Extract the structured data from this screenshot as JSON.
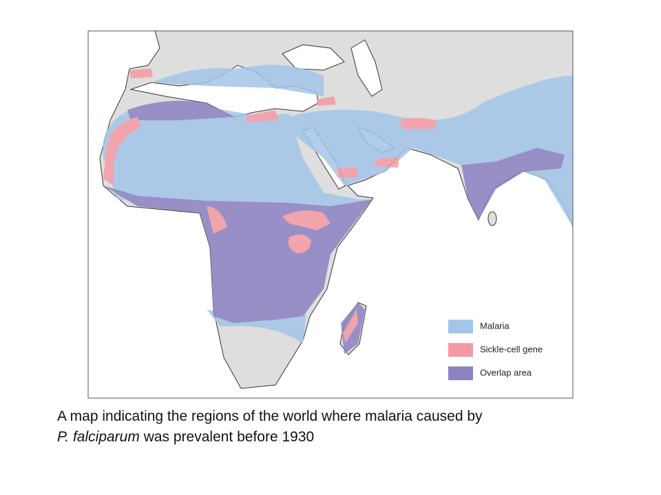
{
  "legend": {
    "items": [
      {
        "label": "Malaria",
        "color": "#a3c6e8"
      },
      {
        "label": "Sickle-cell gene",
        "color": "#f59aa4"
      },
      {
        "label": "Overlap area",
        "color": "#8c82c2"
      }
    ]
  },
  "caption": {
    "line1": "A map indicating the regions of the world where malaria caused by",
    "species": "P. falciparum",
    "line2_rest": "was prevalent before 1930"
  }
}
